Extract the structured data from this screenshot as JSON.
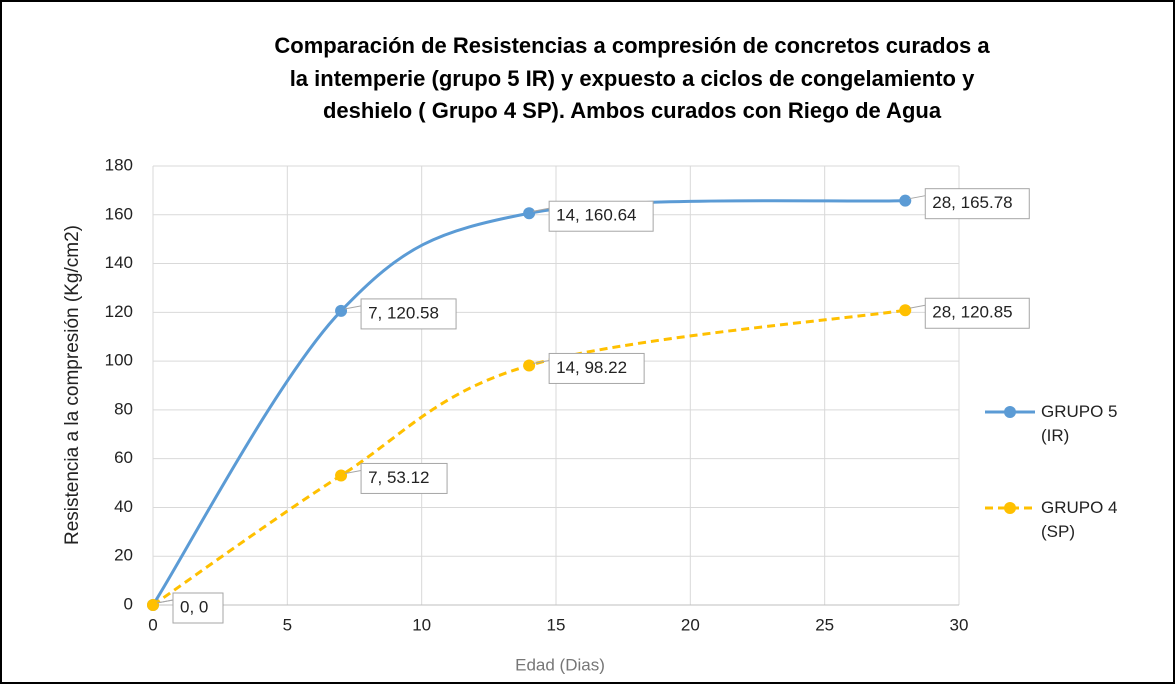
{
  "chart_data": {
    "type": "line",
    "title": [
      "Comparación de Resistencias a compresión de concretos curados a",
      "la intemperie (grupo 5 IR) y expuesto a ciclos de congelamiento y",
      "deshielo   ( Grupo 4 SP). Ambos curados con Riego de Agua"
    ],
    "xlabel": "Edad (Dias)",
    "ylabel": "Resistencia a la compresión (Kg/cm2)",
    "x": [
      0,
      7,
      14,
      28
    ],
    "series": [
      {
        "name": "GRUPO 5 (IR)",
        "color": "#5b9bd5",
        "dashed": false,
        "values": [
          0,
          120.58,
          160.64,
          165.78
        ],
        "value_labels": [
          "0, 0",
          "7, 120.58",
          "14, 160.64",
          "28, 165.78"
        ]
      },
      {
        "name": "GRUPO 4 (SP)",
        "color": "#ffc000",
        "dashed": true,
        "values": [
          0,
          53.12,
          98.22,
          120.85
        ],
        "value_labels": [
          "0, 0",
          "7, 53.12",
          "14, 98.22",
          "28, 120.85"
        ]
      }
    ],
    "xlim": [
      0,
      30
    ],
    "xticks": [
      0,
      5,
      10,
      15,
      20,
      25,
      30
    ],
    "ylim": [
      0,
      180
    ],
    "yticks": [
      0,
      20,
      40,
      60,
      80,
      100,
      120,
      140,
      160,
      180
    ],
    "grid": true,
    "smooth": true,
    "legend": "right"
  }
}
